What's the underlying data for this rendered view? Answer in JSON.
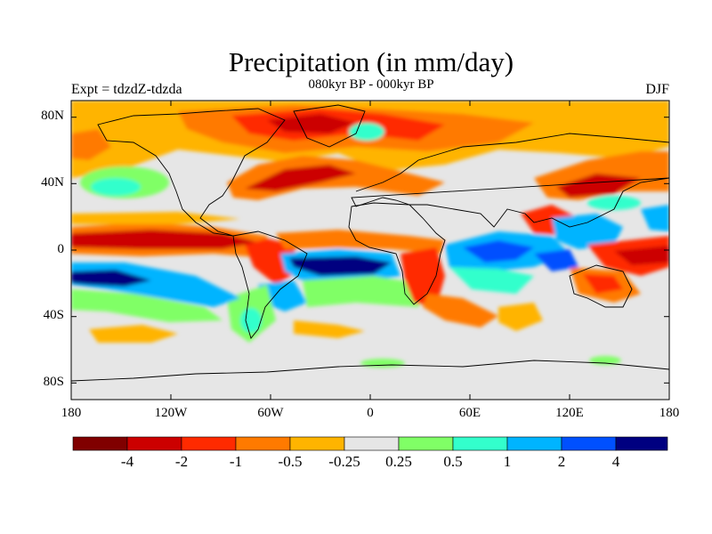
{
  "figure": {
    "title": "Precipitation (in mm/day)",
    "left_subtitle": "Expt = tdzdZ-tdzda",
    "center_subtitle": "080kyr BP - 000kyr BP",
    "right_subtitle": "DJF"
  },
  "axes": {
    "lat_labels": [
      "80N",
      "40N",
      "0",
      "40S",
      "80S"
    ],
    "lon_labels": [
      "180",
      "120W",
      "60W",
      "0",
      "60E",
      "120E",
      "180"
    ]
  },
  "colorbar": {
    "colors": [
      "#800000",
      "#cc0000",
      "#ff2a00",
      "#ff7a00",
      "#ffb400",
      "#e6e6e6",
      "#80ff66",
      "#33ffcc",
      "#00b4ff",
      "#0050ff",
      "#000080"
    ],
    "labels": [
      "-4",
      "-2",
      "-1",
      "-0.5",
      "-0.25",
      "0.25",
      "0.5",
      "1",
      "2",
      "4"
    ]
  },
  "map_colors": {
    "background": "#e6e6e6",
    "coast": "#000000"
  }
}
